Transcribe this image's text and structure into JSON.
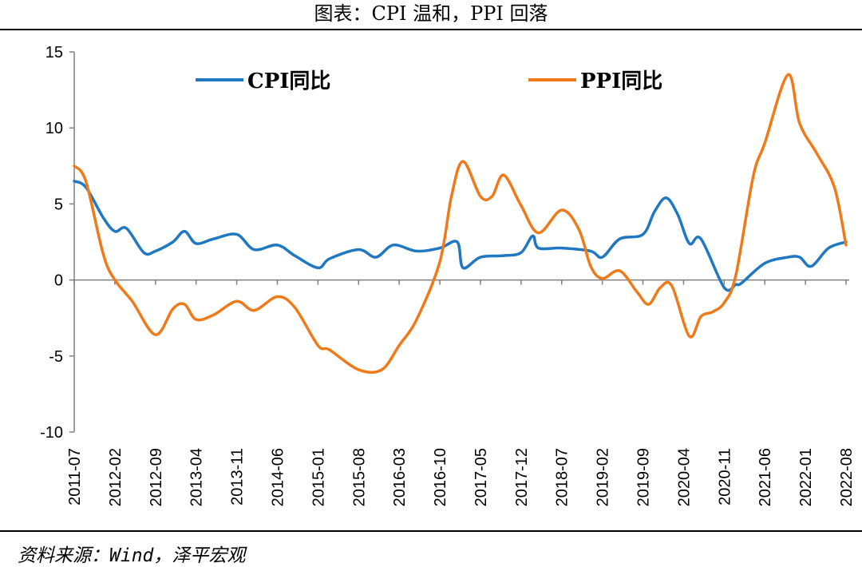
{
  "title": "图表：CPI 温和，PPI 回落",
  "source": "资料来源：Wind，泽平宏观",
  "colors": {
    "cpi": "#1f78c1",
    "ppi": "#f07a1a",
    "axis": "#808080"
  },
  "chart_data": {
    "type": "line",
    "title": "图表：CPI 温和，PPI 回落",
    "ylim": [
      -10,
      15
    ],
    "yticks": [
      15,
      10,
      5,
      0,
      -5,
      -10
    ],
    "ytick_labels": [
      "15",
      "10",
      "5",
      "0",
      "-5",
      "-10"
    ],
    "xlim": [
      "2011-07",
      "2022-08"
    ],
    "xtick_labels": [
      "2011-07",
      "2012-02",
      "2012-09",
      "2013-04",
      "2013-11",
      "2014-06",
      "2015-01",
      "2015-08",
      "2016-03",
      "2016-10",
      "2017-05",
      "2017-12",
      "2018-07",
      "2019-02",
      "2019-09",
      "2020-04",
      "2020-11",
      "2021-06",
      "2022-01",
      "2022-08"
    ],
    "legend_position": "top",
    "series": [
      {
        "name": "CPI同比",
        "x": [
          "2011-07",
          "2011-09",
          "2011-12",
          "2012-02",
          "2012-04",
          "2012-07",
          "2012-09",
          "2012-12",
          "2013-02",
          "2013-04",
          "2013-07",
          "2013-11",
          "2014-02",
          "2014-06",
          "2014-09",
          "2015-01",
          "2015-03",
          "2015-08",
          "2015-11",
          "2016-02",
          "2016-06",
          "2016-10",
          "2017-01",
          "2017-02",
          "2017-05",
          "2017-09",
          "2017-12",
          "2018-02",
          "2018-03",
          "2018-07",
          "2018-12",
          "2019-02",
          "2019-05",
          "2019-09",
          "2019-11",
          "2020-01",
          "2020-03",
          "2020-05",
          "2020-07",
          "2020-11",
          "2021-01",
          "2021-02",
          "2021-06",
          "2021-10",
          "2021-12",
          "2022-02",
          "2022-05",
          "2022-08"
        ],
        "y": [
          6.5,
          6.1,
          4.1,
          3.2,
          3.4,
          1.8,
          1.9,
          2.5,
          3.2,
          2.4,
          2.7,
          3.0,
          2.0,
          2.3,
          1.6,
          0.8,
          1.4,
          2.0,
          1.5,
          2.3,
          1.9,
          2.1,
          2.5,
          0.8,
          1.5,
          1.6,
          1.8,
          2.9,
          2.1,
          2.1,
          1.9,
          1.5,
          2.7,
          3.0,
          4.5,
          5.4,
          4.3,
          2.4,
          2.7,
          -0.5,
          -0.3,
          -0.2,
          1.1,
          1.5,
          1.5,
          0.9,
          2.1,
          2.5
        ]
      },
      {
        "name": "PPI同比",
        "x": [
          "2011-07",
          "2011-09",
          "2011-12",
          "2012-02",
          "2012-05",
          "2012-09",
          "2012-12",
          "2013-02",
          "2013-04",
          "2013-07",
          "2013-11",
          "2014-02",
          "2014-06",
          "2014-09",
          "2015-01",
          "2015-03",
          "2015-08",
          "2015-12",
          "2016-03",
          "2016-06",
          "2016-10",
          "2016-12",
          "2017-02",
          "2017-05",
          "2017-07",
          "2017-09",
          "2017-12",
          "2018-03",
          "2018-07",
          "2018-10",
          "2018-12",
          "2019-02",
          "2019-05",
          "2019-08",
          "2019-10",
          "2019-12",
          "2020-02",
          "2020-05",
          "2020-07",
          "2020-09",
          "2020-11",
          "2021-01",
          "2021-04",
          "2021-06",
          "2021-10",
          "2021-12",
          "2022-03",
          "2022-06",
          "2022-08"
        ],
        "y": [
          7.5,
          6.5,
          1.7,
          0.0,
          -1.4,
          -3.6,
          -1.9,
          -1.6,
          -2.6,
          -2.3,
          -1.4,
          -2.0,
          -1.1,
          -1.8,
          -4.3,
          -4.6,
          -5.9,
          -5.9,
          -4.3,
          -2.6,
          1.2,
          5.5,
          7.8,
          5.5,
          5.5,
          6.9,
          4.9,
          3.1,
          4.6,
          3.3,
          0.9,
          0.1,
          0.6,
          -0.8,
          -1.6,
          -0.5,
          -0.4,
          -3.7,
          -2.4,
          -2.1,
          -1.5,
          0.3,
          6.8,
          9.0,
          13.5,
          10.3,
          8.3,
          6.1,
          2.3
        ]
      }
    ]
  }
}
